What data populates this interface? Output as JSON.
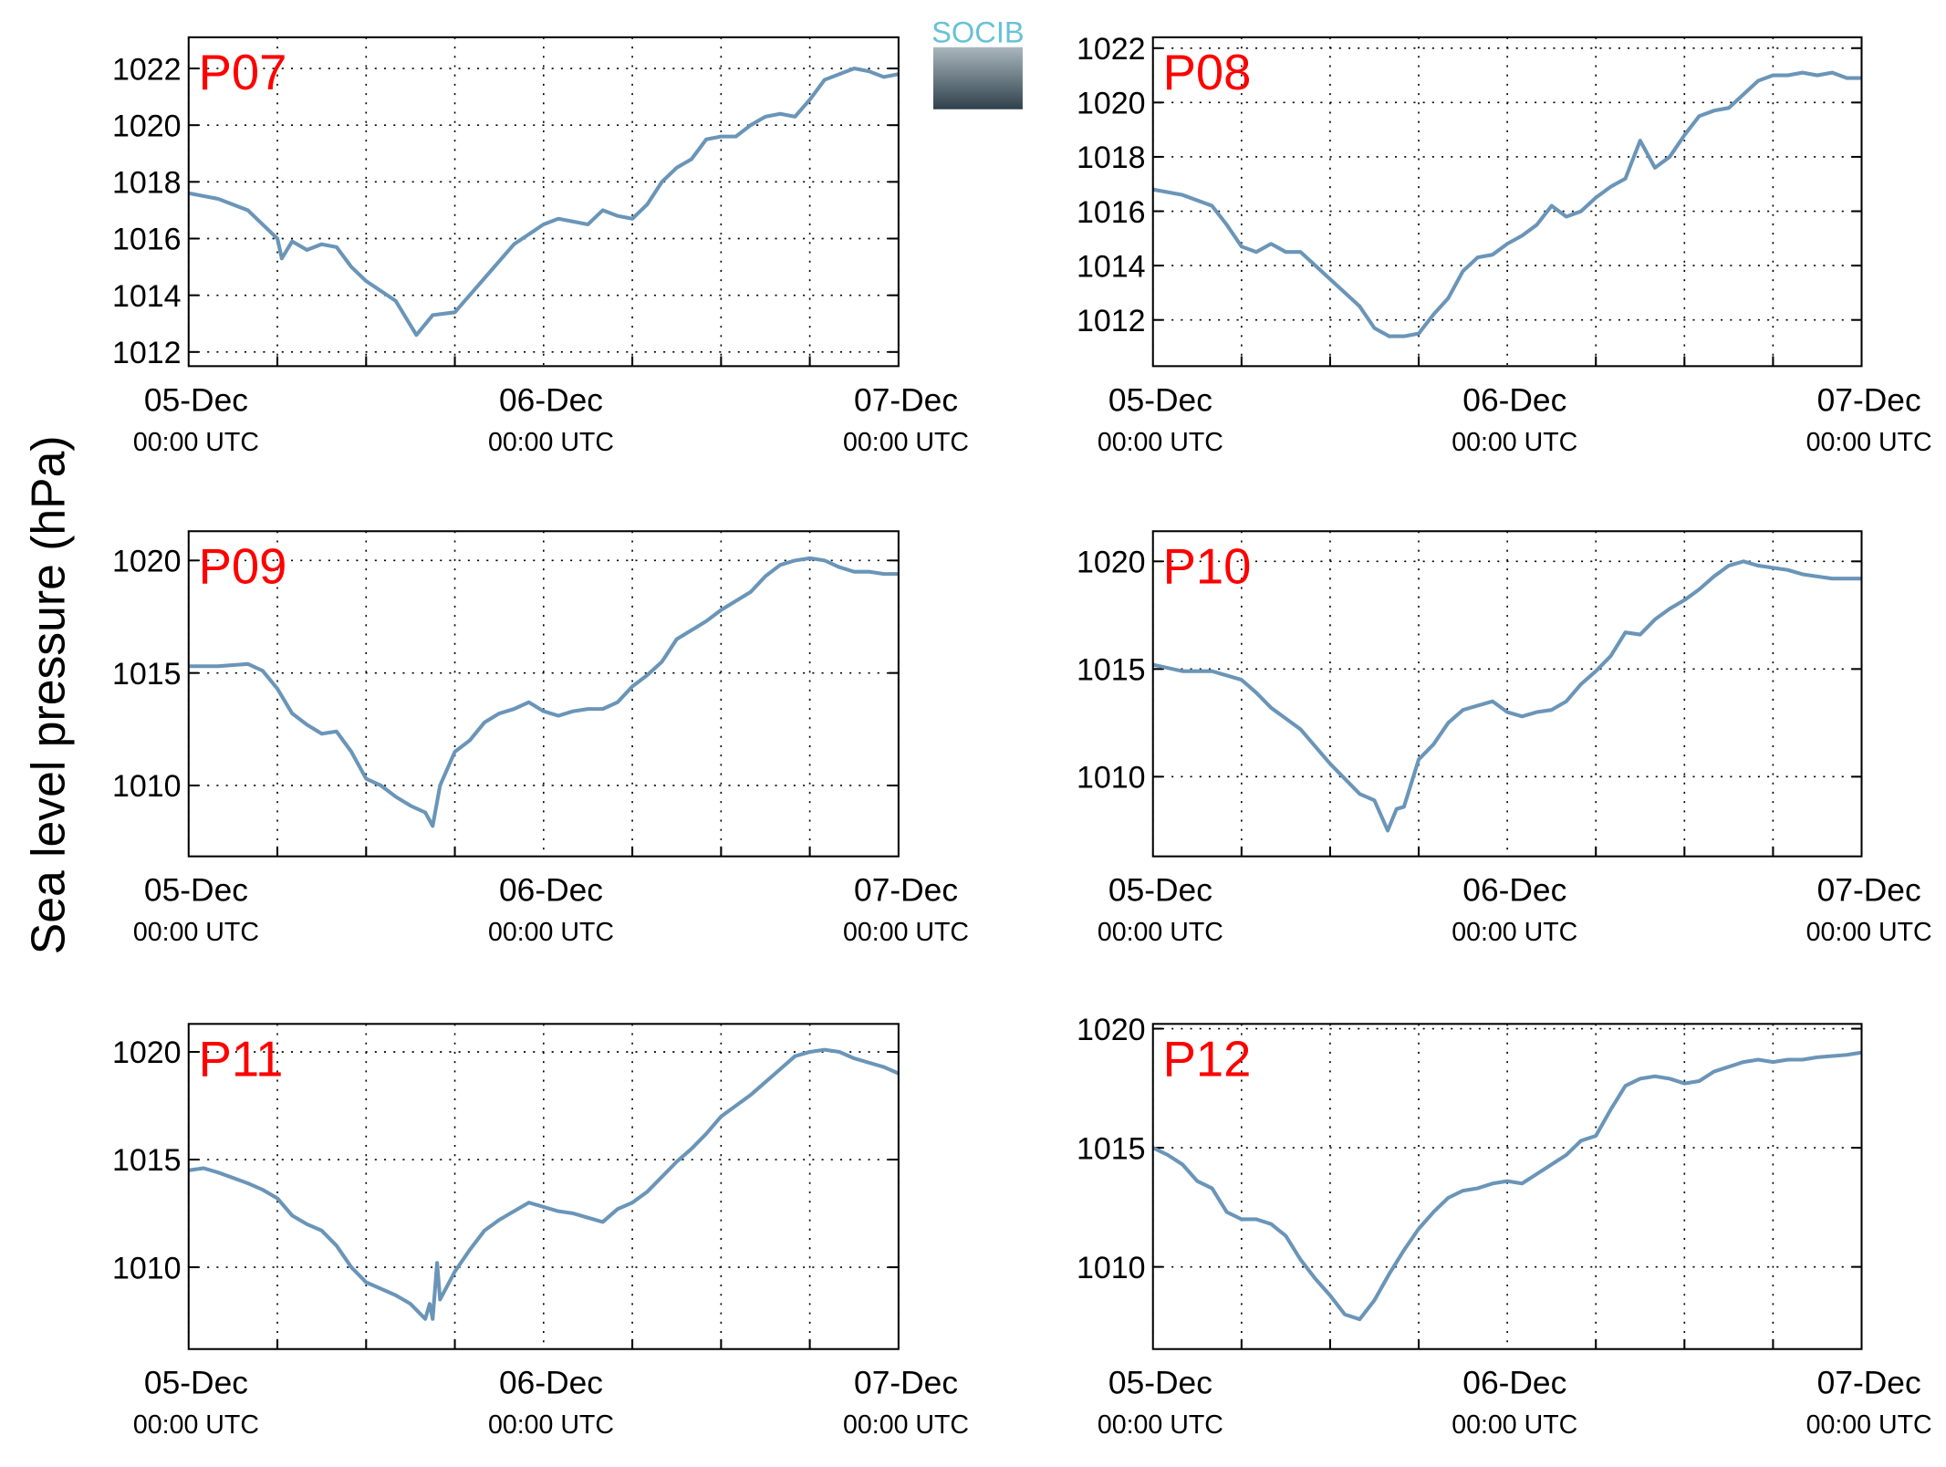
{
  "ylabel": "Sea level pressure (hPa)",
  "logo": "SOCIB",
  "chart_data": [
    {
      "type": "line",
      "title": "P07",
      "color": "#6a95b8",
      "xlim": [
        0,
        48
      ],
      "ylim": [
        1011.5,
        1023.1
      ],
      "yticks": [
        1012,
        1014,
        1016,
        1018,
        1020,
        1022
      ],
      "xticks": [
        {
          "value": 0,
          "label": "05-Dec",
          "sublabel": "00:00 UTC"
        },
        {
          "value": 24,
          "label": "06-Dec",
          "sublabel": "00:00 UTC"
        },
        {
          "value": 48,
          "label": "07-Dec",
          "sublabel": "00:00 UTC"
        }
      ],
      "xgrid": [
        6,
        12,
        18,
        30,
        36,
        42
      ],
      "grid": true,
      "x": [
        0,
        2,
        4,
        5,
        6,
        6.3,
        7,
        8,
        9,
        10,
        11,
        12,
        14,
        15.4,
        16.5,
        18,
        20,
        22,
        24,
        25,
        26,
        27,
        28,
        29,
        30,
        31,
        32,
        33,
        34,
        35,
        36,
        37,
        38,
        39,
        40,
        41,
        42,
        43,
        44,
        45,
        46,
        47,
        48
      ],
      "values": [
        1017.6,
        1017.4,
        1017.0,
        1016.5,
        1016.0,
        1015.3,
        1015.9,
        1015.6,
        1015.8,
        1015.7,
        1015.0,
        1014.5,
        1013.8,
        1012.6,
        1013.3,
        1013.4,
        1014.6,
        1015.8,
        1016.5,
        1016.7,
        1016.6,
        1016.5,
        1017.0,
        1016.8,
        1016.7,
        1017.2,
        1018.0,
        1018.5,
        1018.8,
        1019.5,
        1019.6,
        1019.6,
        1020.0,
        1020.3,
        1020.4,
        1020.3,
        1020.9,
        1021.6,
        1021.8,
        1022.0,
        1021.9,
        1021.7,
        1021.8
      ]
    },
    {
      "type": "line",
      "title": "P08",
      "color": "#6a95b8",
      "xlim": [
        0,
        48
      ],
      "ylim": [
        1010.3,
        1022.4
      ],
      "yticks": [
        1012,
        1014,
        1016,
        1018,
        1020,
        1022
      ],
      "xticks": [
        {
          "value": 0,
          "label": "05-Dec",
          "sublabel": "00:00 UTC"
        },
        {
          "value": 24,
          "label": "06-Dec",
          "sublabel": "00:00 UTC"
        },
        {
          "value": 48,
          "label": "07-Dec",
          "sublabel": "00:00 UTC"
        }
      ],
      "xgrid": [
        6,
        12,
        18,
        30,
        36,
        42
      ],
      "grid": true,
      "x": [
        0,
        2,
        4,
        5,
        6,
        7,
        8,
        9,
        10,
        11,
        12,
        14,
        15,
        16,
        17,
        18,
        19,
        20,
        21,
        22,
        23,
        24,
        25,
        26,
        27,
        28,
        29,
        30,
        31,
        32,
        33,
        34,
        35,
        36,
        37,
        38,
        39,
        40,
        41,
        42,
        43,
        44,
        45,
        46,
        47,
        48
      ],
      "values": [
        1016.8,
        1016.6,
        1016.2,
        1015.5,
        1014.7,
        1014.5,
        1014.8,
        1014.5,
        1014.5,
        1014.0,
        1013.5,
        1012.5,
        1011.7,
        1011.4,
        1011.4,
        1011.5,
        1012.2,
        1012.8,
        1013.8,
        1014.3,
        1014.4,
        1014.8,
        1015.1,
        1015.5,
        1016.2,
        1015.8,
        1016.0,
        1016.5,
        1016.9,
        1017.2,
        1018.6,
        1017.6,
        1018.0,
        1018.8,
        1019.5,
        1019.7,
        1019.8,
        1020.3,
        1020.8,
        1021.0,
        1021.0,
        1021.1,
        1021.0,
        1021.1,
        1020.9,
        1020.9
      ]
    },
    {
      "type": "line",
      "title": "P09",
      "color": "#6a95b8",
      "xlim": [
        0,
        48
      ],
      "ylim": [
        1006.85,
        1021.3
      ],
      "yticks": [
        1010,
        1015,
        1020
      ],
      "xticks": [
        {
          "value": 0,
          "label": "05-Dec",
          "sublabel": "00:00 UTC"
        },
        {
          "value": 24,
          "label": "06-Dec",
          "sublabel": "00:00 UTC"
        },
        {
          "value": 48,
          "label": "07-Dec",
          "sublabel": "00:00 UTC"
        }
      ],
      "xgrid": [
        6,
        12,
        18,
        30,
        36,
        42
      ],
      "grid": true,
      "x": [
        0,
        2,
        4,
        5,
        6,
        7,
        8,
        9,
        10,
        11,
        12,
        13,
        14,
        15,
        16,
        16.5,
        17,
        18,
        19,
        20,
        21,
        22,
        23,
        24,
        25,
        26,
        27,
        28,
        29,
        30,
        31,
        32,
        33,
        34,
        35,
        36,
        37,
        38,
        39,
        40,
        41,
        42,
        43,
        44,
        45,
        46,
        47,
        48
      ],
      "values": [
        1015.3,
        1015.3,
        1015.4,
        1015.1,
        1014.3,
        1013.2,
        1012.7,
        1012.3,
        1012.4,
        1011.5,
        1010.3,
        1010.0,
        1009.5,
        1009.1,
        1008.8,
        1008.2,
        1010.0,
        1011.5,
        1012.0,
        1012.8,
        1013.2,
        1013.4,
        1013.7,
        1013.3,
        1013.1,
        1013.3,
        1013.4,
        1013.4,
        1013.7,
        1014.4,
        1014.9,
        1015.5,
        1016.5,
        1016.9,
        1017.3,
        1017.8,
        1018.2,
        1018.6,
        1019.3,
        1019.8,
        1020.0,
        1020.1,
        1020.0,
        1019.7,
        1019.5,
        1019.5,
        1019.4,
        1019.4
      ]
    },
    {
      "type": "line",
      "title": "P10",
      "color": "#6a95b8",
      "xlim": [
        0,
        48
      ],
      "ylim": [
        1006.3,
        1021.4
      ],
      "yticks": [
        1010,
        1015,
        1020
      ],
      "xticks": [
        {
          "value": 0,
          "label": "05-Dec",
          "sublabel": "00:00 UTC"
        },
        {
          "value": 24,
          "label": "06-Dec",
          "sublabel": "00:00 UTC"
        },
        {
          "value": 48,
          "label": "07-Dec",
          "sublabel": "00:00 UTC"
        }
      ],
      "xgrid": [
        6,
        12,
        18,
        30,
        36,
        42
      ],
      "grid": true,
      "x": [
        0,
        2,
        4,
        6,
        7,
        8,
        9,
        10,
        11,
        12,
        13,
        14,
        15,
        15.9,
        16.5,
        17,
        18,
        19,
        20,
        21,
        22,
        23,
        24,
        25,
        26,
        27,
        28,
        29,
        30,
        31,
        32,
        33,
        34,
        35,
        36,
        37,
        38,
        39,
        40,
        41,
        42,
        43,
        44,
        45,
        46,
        48
      ],
      "values": [
        1015.2,
        1014.9,
        1014.9,
        1014.5,
        1013.9,
        1013.2,
        1012.7,
        1012.2,
        1011.4,
        1010.6,
        1009.9,
        1009.2,
        1008.9,
        1007.5,
        1008.5,
        1008.6,
        1010.8,
        1011.5,
        1012.5,
        1013.1,
        1013.3,
        1013.5,
        1013.0,
        1012.8,
        1013.0,
        1013.1,
        1013.5,
        1014.3,
        1014.9,
        1015.6,
        1016.7,
        1016.6,
        1017.3,
        1017.8,
        1018.2,
        1018.7,
        1019.3,
        1019.8,
        1020.0,
        1019.8,
        1019.7,
        1019.6,
        1019.4,
        1019.3,
        1019.2,
        1019.2
      ]
    },
    {
      "type": "line",
      "title": "P11",
      "color": "#6a95b8",
      "xlim": [
        0,
        48
      ],
      "ylim": [
        1006.2,
        1021.3
      ],
      "yticks": [
        1010,
        1015,
        1020
      ],
      "xticks": [
        {
          "value": 0,
          "label": "05-Dec",
          "sublabel": "00:00 UTC"
        },
        {
          "value": 24,
          "label": "06-Dec",
          "sublabel": "00:00 UTC"
        },
        {
          "value": 48,
          "label": "07-Dec",
          "sublabel": "00:00 UTC"
        }
      ],
      "xgrid": [
        6,
        12,
        18,
        30,
        36,
        42
      ],
      "grid": true,
      "x": [
        0,
        1,
        2,
        4,
        5,
        6,
        7,
        8,
        9,
        10,
        11,
        12,
        13,
        14,
        15,
        16,
        16.3,
        16.5,
        16.8,
        17,
        18,
        19,
        20,
        21,
        22,
        23,
        24,
        25,
        26,
        27,
        28,
        29,
        30,
        31,
        32,
        33,
        34,
        35,
        36,
        37,
        38,
        39,
        40,
        41,
        42,
        43,
        44,
        45,
        46,
        47,
        48
      ],
      "values": [
        1014.5,
        1014.6,
        1014.4,
        1013.9,
        1013.6,
        1013.2,
        1012.4,
        1012.0,
        1011.7,
        1011.0,
        1010.0,
        1009.3,
        1009.0,
        1008.7,
        1008.3,
        1007.6,
        1008.3,
        1007.6,
        1010.2,
        1008.5,
        1009.8,
        1010.8,
        1011.7,
        1012.2,
        1012.6,
        1013.0,
        1012.8,
        1012.6,
        1012.5,
        1012.3,
        1012.1,
        1012.7,
        1013.0,
        1013.5,
        1014.2,
        1014.9,
        1015.5,
        1016.2,
        1017.0,
        1017.5,
        1018.0,
        1018.6,
        1019.2,
        1019.8,
        1020.0,
        1020.1,
        1020.0,
        1019.7,
        1019.5,
        1019.3,
        1019.0
      ]
    },
    {
      "type": "line",
      "title": "P12",
      "color": "#6a95b8",
      "xlim": [
        0,
        48
      ],
      "ylim": [
        1006.55,
        1020.2
      ],
      "yticks": [
        1010,
        1015,
        1020
      ],
      "xticks": [
        {
          "value": 0,
          "label": "05-Dec",
          "sublabel": "00:00 UTC"
        },
        {
          "value": 24,
          "label": "06-Dec",
          "sublabel": "00:00 UTC"
        },
        {
          "value": 48,
          "label": "07-Dec",
          "sublabel": "00:00 UTC"
        }
      ],
      "xgrid": [
        6,
        12,
        18,
        30,
        36,
        42
      ],
      "grid": true,
      "x": [
        0,
        1,
        2,
        3,
        4,
        5,
        6,
        7,
        8,
        9,
        10,
        11,
        12,
        13,
        14,
        15,
        16,
        17,
        18,
        19,
        20,
        21,
        22,
        23,
        24,
        25,
        26,
        27,
        28,
        29,
        30,
        31,
        32,
        33,
        34,
        35,
        36,
        37,
        38,
        39,
        40,
        41,
        42,
        43,
        44,
        45,
        47,
        48
      ],
      "values": [
        1015.0,
        1014.7,
        1014.3,
        1013.6,
        1013.3,
        1012.3,
        1012.0,
        1012.0,
        1011.8,
        1011.3,
        1010.3,
        1009.5,
        1008.8,
        1008.0,
        1007.8,
        1008.6,
        1009.7,
        1010.7,
        1011.6,
        1012.3,
        1012.9,
        1013.2,
        1013.3,
        1013.5,
        1013.6,
        1013.5,
        1013.9,
        1014.3,
        1014.7,
        1015.3,
        1015.5,
        1016.6,
        1017.6,
        1017.9,
        1018.0,
        1017.9,
        1017.7,
        1017.8,
        1018.2,
        1018.4,
        1018.6,
        1018.7,
        1018.6,
        1018.7,
        1018.7,
        1018.8,
        1018.9,
        1019.0
      ]
    }
  ]
}
